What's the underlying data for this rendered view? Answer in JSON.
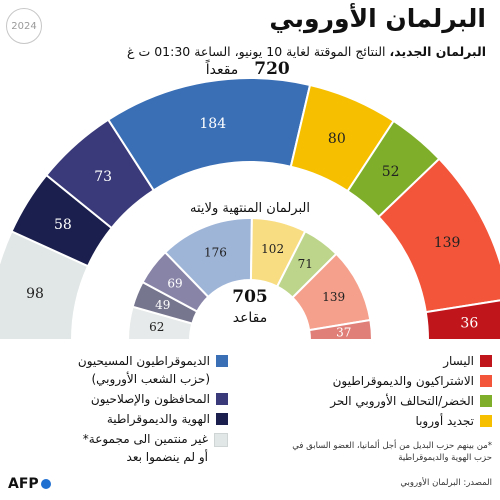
{
  "header": {
    "title": "البرلمان الأوروبي",
    "subtitle_bold": "البرلمان الجديد،",
    "subtitle_rest": " النتائج الموقتة لغاية 10 يونيو، الساعة 01:30 ت غ",
    "badge": "2024"
  },
  "chart_data": [
    {
      "type": "pie",
      "title": "",
      "total_number": "720",
      "total_label": "مقعداً",
      "segments": [
        {
          "name": "غير منتمين الى مجموعة* أو لم ينضموا بعد",
          "value": 98,
          "color": "#e1e6e6"
        },
        {
          "name": "الهوية والديموقراطية",
          "value": 58,
          "color": "#1b1f4d"
        },
        {
          "name": "المحافظون والإصلاحيون",
          "value": 73,
          "color": "#3a3a7a"
        },
        {
          "name": "الديموقراطيون المسيحيون (حزب الشعب الأوروبي)",
          "value": 184,
          "color": "#3a6fb6"
        },
        {
          "name": "تجديد أوروبا",
          "value": 80,
          "color": "#f6c000"
        },
        {
          "name": "الخضر/التحالف الأوروبي الحر",
          "value": 52,
          "color": "#7faf2a"
        },
        {
          "name": "الاشتراكيون والديموقراطيون",
          "value": 139,
          "color": "#f2553a"
        },
        {
          "name": "اليسار",
          "value": 36,
          "color": "#c0161b"
        }
      ]
    },
    {
      "type": "pie",
      "title": "البرلمان المنتهية ولايته",
      "total_number": "705",
      "total_label": "مقاعد",
      "segments": [
        {
          "name": "غير منتمين الى مجموعة* أو لم ينضموا بعد",
          "value": 62,
          "color": "#e7eaea"
        },
        {
          "name": "الهوية والديموقراطية",
          "value": 49,
          "color": "#77768f"
        },
        {
          "name": "المحافظون والإصلاحيون",
          "value": 69,
          "color": "#8884a8"
        },
        {
          "name": "الديموقراطيون المسيحيون (حزب الشعب الأوروبي)",
          "value": 176,
          "color": "#9fb5d8"
        },
        {
          "name": "تجديد أوروبا",
          "value": 102,
          "color": "#f8dd83"
        },
        {
          "name": "الخضر/التحالف الأوروبي الحر",
          "value": 71,
          "color": "#bdd58a"
        },
        {
          "name": "الاشتراكيون والديموقراطيون",
          "value": 139,
          "color": "#f5a08c"
        },
        {
          "name": "اليسار",
          "value": 37,
          "color": "#e07f77"
        }
      ]
    }
  ],
  "legend": {
    "right": [
      {
        "label": "اليسار",
        "color": "#c0161b"
      },
      {
        "label": "الاشتراكيون والديموقراطيون",
        "color": "#f2553a"
      },
      {
        "label": "الخضر/التحالف الأوروبي الحر",
        "color": "#7faf2a"
      },
      {
        "label": "تجديد أوروبا",
        "color": "#f6c000"
      }
    ],
    "left": [
      {
        "label": "الديموقراطيون المسيحيون",
        "label2": "(حزب الشعب الأوروبي)",
        "color": "#3a6fb6"
      },
      {
        "label": "المحافظون والإصلاحيون",
        "label2": "",
        "color": "#3a3a7a"
      },
      {
        "label": "الهوية والديموقراطية",
        "label2": "",
        "color": "#1b1f4d"
      },
      {
        "label": "غير منتمين الى مجموعة*",
        "label2": "أو لم ينضموا بعد",
        "color": "#e1e6e6"
      }
    ]
  },
  "note": "*من بينهم حزب البديل من أجل ألمانيا، العضو السابق في حزب الهوية والديموقراطية",
  "source": "المصدر: البرلمان الأوروبي",
  "logo": "AFP"
}
